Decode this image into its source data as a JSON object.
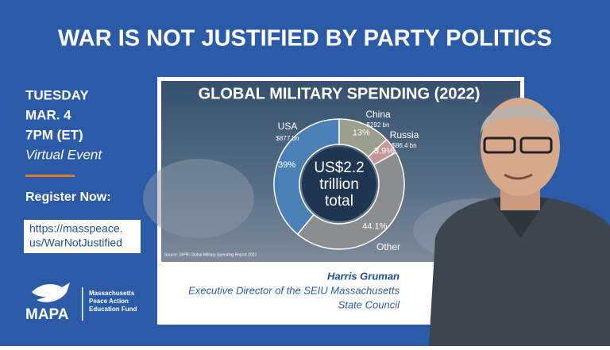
{
  "title": "WAR IS NOT JUSTIFIED BY PARTY POLITICS",
  "event": {
    "day": "TUESDAY",
    "date": "MAR. 4",
    "time": "7PM (ET)",
    "format": "Virtual Event"
  },
  "register": {
    "label": "Register Now:",
    "url_lines": [
      "https://masspeace.",
      "us/WarNotJustified"
    ]
  },
  "logo": {
    "name": "MAPA",
    "org_lines": [
      "Massachusetts",
      "Peace Action",
      "Education Fund"
    ]
  },
  "chart_data": {
    "type": "donut",
    "title": "GLOBAL MILITARY SPENDING (2022)",
    "categories": [
      "USA",
      "China",
      "Russia",
      "Other"
    ],
    "amounts": [
      "$877 bn",
      "$292 bn",
      "$86.4 bn",
      null
    ],
    "values": [
      39,
      13,
      3.9,
      44.1
    ],
    "value_labels": [
      "39%",
      "13%",
      "3.9%",
      "44.1%"
    ],
    "colors": [
      "#4b80b6",
      "#9b9f8b",
      "#c49794",
      "#8c8d8f"
    ],
    "center_label_lines": [
      "US$2.2",
      "trillion",
      "total"
    ],
    "source": "Source: SIPRI Global Military Spending Report 2022"
  },
  "speaker": {
    "name": "Harris Gruman",
    "role_lines": [
      "Executive Director of the SEIU Massachusetts",
      "State Council"
    ]
  }
}
